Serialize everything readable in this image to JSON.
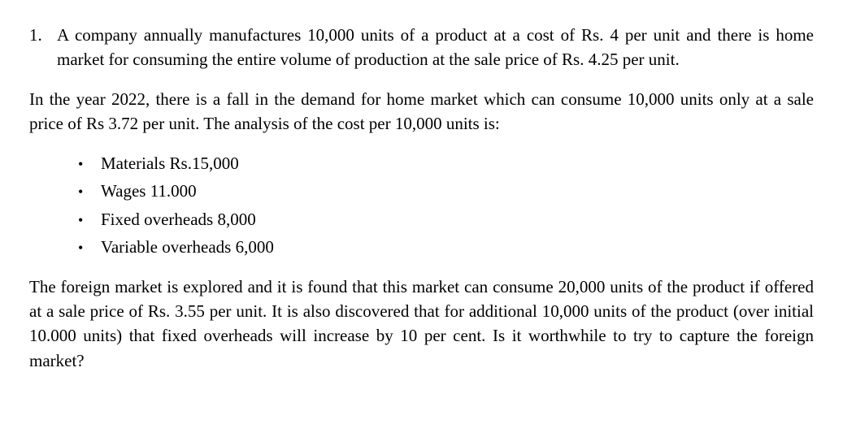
{
  "question": {
    "number": "1.",
    "intro": "A company annually manufactures 10,000 units of a product at a cost of Rs. 4 per unit and there is home market for consuming the entire volume of production at the sale price of Rs. 4.25 per unit.",
    "para2": "In the year 2022, there is a fall in the demand for home market which can consume 10,000 units only at a sale price of Rs 3.72 per unit. The analysis of the cost per 10,000 units is:",
    "costs": [
      "Materials Rs.15,000",
      "Wages  11.000",
      "Fixed overheads 8,000",
      "Variable overheads 6,000"
    ],
    "para3": "The foreign market is explored and it is found that this market can consume 20,000 units of the product if offered at a sale price of Rs. 3.55 per unit. It is also discovered that for additional 10,000 units of the product (over initial 10.000 units) that fixed overheads will increase by 10 per cent. Is it worthwhile to try to capture the foreign market?"
  },
  "style": {
    "font_family": "Times New Roman",
    "font_size_pt": 16,
    "text_color": "#000000",
    "background_color": "#ffffff",
    "bullet_char": "•"
  }
}
